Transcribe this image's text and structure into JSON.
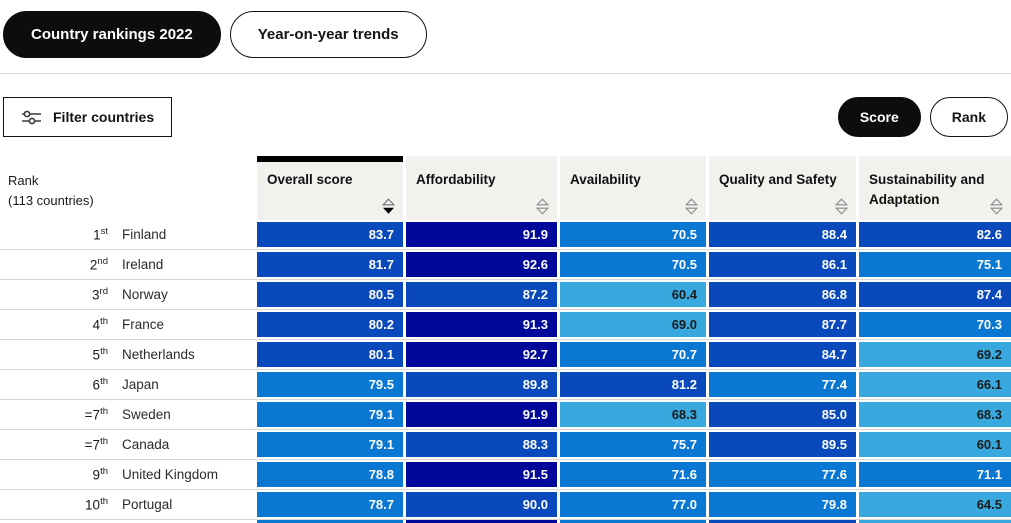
{
  "tabs": [
    {
      "label": "Country rankings 2022",
      "active": true
    },
    {
      "label": "Year-on-year trends",
      "active": false
    }
  ],
  "toolbar": {
    "filter_label": "Filter countries",
    "score_label": "Score",
    "rank_label": "Rank"
  },
  "table": {
    "rank_header": {
      "line1": "Rank",
      "line2": "(113 countries)"
    },
    "columns": [
      {
        "label": "Overall score",
        "active": true,
        "sort": "desc"
      },
      {
        "label": "Affordability",
        "active": false,
        "sort": "none"
      },
      {
        "label": "Availability",
        "active": false,
        "sort": "none"
      },
      {
        "label": "Quality and Safety",
        "active": false,
        "sort": "none"
      },
      {
        "label": "Sustainability and Adaptation",
        "active": false,
        "sort": "none"
      }
    ],
    "rows": [
      {
        "rank": "1",
        "rank_suffix": "st",
        "country": "Finland",
        "scores": [
          83.7,
          91.9,
          70.5,
          88.4,
          82.6
        ]
      },
      {
        "rank": "2",
        "rank_suffix": "nd",
        "country": "Ireland",
        "scores": [
          81.7,
          92.6,
          70.5,
          86.1,
          75.1
        ]
      },
      {
        "rank": "3",
        "rank_suffix": "rd",
        "country": "Norway",
        "scores": [
          80.5,
          87.2,
          60.4,
          86.8,
          87.4
        ]
      },
      {
        "rank": "4",
        "rank_suffix": "th",
        "country": "France",
        "scores": [
          80.2,
          91.3,
          69.0,
          87.7,
          70.3
        ]
      },
      {
        "rank": "5",
        "rank_suffix": "th",
        "country": "Netherlands",
        "scores": [
          80.1,
          92.7,
          70.7,
          84.7,
          69.2
        ]
      },
      {
        "rank": "6",
        "rank_suffix": "th",
        "country": "Japan",
        "scores": [
          79.5,
          89.8,
          81.2,
          77.4,
          66.1
        ]
      },
      {
        "rank": "=7",
        "rank_suffix": "th",
        "country": "Sweden",
        "scores": [
          79.1,
          91.9,
          68.3,
          85.0,
          68.3
        ]
      },
      {
        "rank": "=7",
        "rank_suffix": "th",
        "country": "Canada",
        "scores": [
          79.1,
          88.3,
          75.7,
          89.5,
          60.1
        ]
      },
      {
        "rank": "9",
        "rank_suffix": "th",
        "country": "United Kingdom",
        "scores": [
          78.8,
          91.5,
          71.6,
          77.6,
          71.1
        ]
      },
      {
        "rank": "10",
        "rank_suffix": "th",
        "country": "Portugal",
        "scores": [
          78.7,
          90.0,
          77.0,
          79.8,
          64.5
        ]
      }
    ],
    "next_row_peek_bands": [
      "band_70s",
      "band_90_plus",
      "band_70s",
      "band_80s",
      "band_60s"
    ]
  },
  "colors": {
    "band_90_plus": "#000899",
    "band_80s": "#0A49BB",
    "band_70s": "#0A78D2",
    "band_60s": "#38A8DE",
    "value_text_light": "#FFFFFF",
    "value_text_dark": "#1A1A1A",
    "dark_text_below": 70
  }
}
